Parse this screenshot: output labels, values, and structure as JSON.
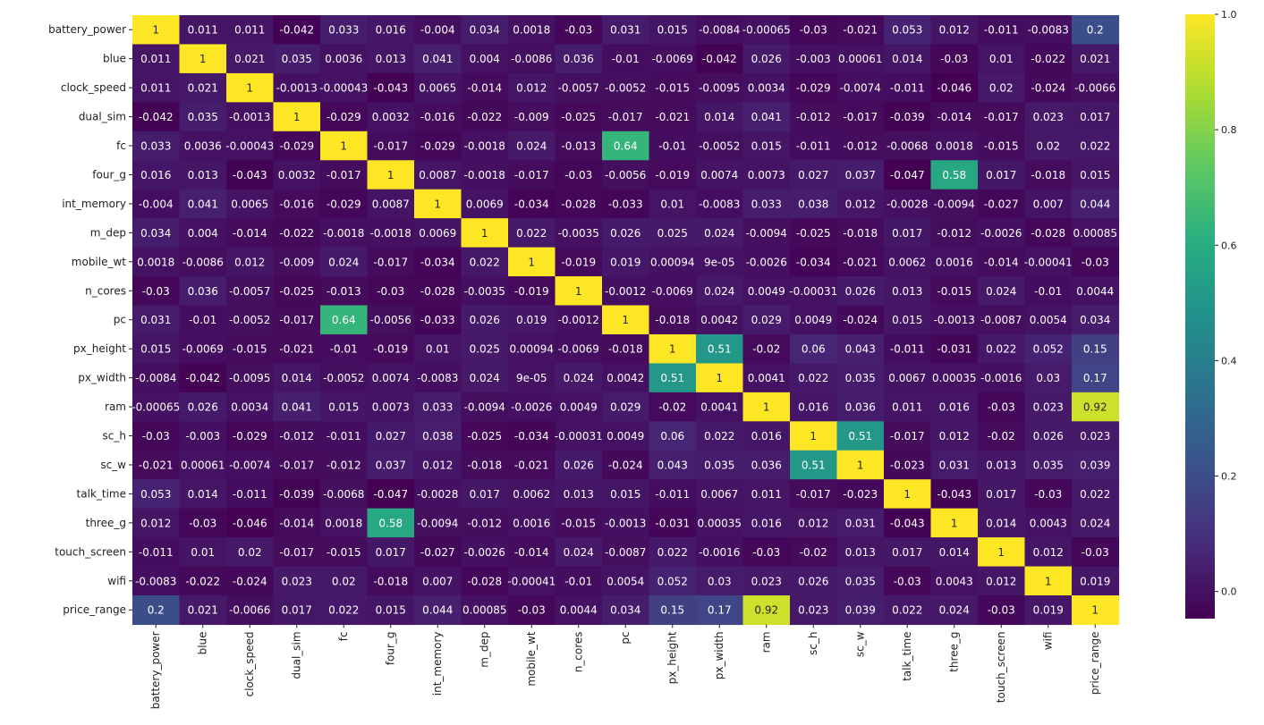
{
  "chart_data": {
    "type": "heatmap",
    "colormap": "viridis",
    "annotated": true,
    "vmin": -0.047,
    "vmax": 1.0,
    "features": [
      "battery_power",
      "blue",
      "clock_speed",
      "dual_sim",
      "fc",
      "four_g",
      "int_memory",
      "m_dep",
      "mobile_wt",
      "n_cores",
      "pc",
      "px_height",
      "px_width",
      "ram",
      "sc_h",
      "sc_w",
      "talk_time",
      "three_g",
      "touch_screen",
      "wifi",
      "price_range"
    ],
    "labels": [
      [
        "1",
        "0.011",
        "0.011",
        "-0.042",
        "0.033",
        "0.016",
        "-0.004",
        "0.034",
        "0.0018",
        "-0.03",
        "0.031",
        "0.015",
        "-0.0084",
        "-0.00065",
        "-0.03",
        "-0.021",
        "0.053",
        "0.012",
        "-0.011",
        "-0.0083",
        "0.2"
      ],
      [
        "0.011",
        "1",
        "0.021",
        "0.035",
        "0.0036",
        "0.013",
        "0.041",
        "0.004",
        "-0.0086",
        "0.036",
        "-0.01",
        "-0.0069",
        "-0.042",
        "0.026",
        "-0.003",
        "0.00061",
        "0.014",
        "-0.03",
        "0.01",
        "-0.022",
        "0.021"
      ],
      [
        "0.011",
        "0.021",
        "1",
        "-0.0013",
        "-0.00043",
        "-0.043",
        "0.0065",
        "-0.014",
        "0.012",
        "-0.0057",
        "-0.0052",
        "-0.015",
        "-0.0095",
        "0.0034",
        "-0.029",
        "-0.0074",
        "-0.011",
        "-0.046",
        "0.02",
        "-0.024",
        "-0.0066"
      ],
      [
        "-0.042",
        "0.035",
        "-0.0013",
        "1",
        "-0.029",
        "0.0032",
        "-0.016",
        "-0.022",
        "-0.009",
        "-0.025",
        "-0.017",
        "-0.021",
        "0.014",
        "0.041",
        "-0.012",
        "-0.017",
        "-0.039",
        "-0.014",
        "-0.017",
        "0.023",
        "0.017"
      ],
      [
        "0.033",
        "0.0036",
        "-0.00043",
        "-0.029",
        "1",
        "-0.017",
        "-0.029",
        "-0.0018",
        "0.024",
        "-0.013",
        "0.64",
        "-0.01",
        "-0.0052",
        "0.015",
        "-0.011",
        "-0.012",
        "-0.0068",
        "0.0018",
        "-0.015",
        "0.02",
        "0.022"
      ],
      [
        "0.016",
        "0.013",
        "-0.043",
        "0.0032",
        "-0.017",
        "1",
        "0.0087",
        "-0.0018",
        "-0.017",
        "-0.03",
        "-0.0056",
        "-0.019",
        "0.0074",
        "0.0073",
        "0.027",
        "0.037",
        "-0.047",
        "0.58",
        "0.017",
        "-0.018",
        "0.015"
      ],
      [
        "-0.004",
        "0.041",
        "0.0065",
        "-0.016",
        "-0.029",
        "0.0087",
        "1",
        "0.0069",
        "-0.034",
        "-0.028",
        "-0.033",
        "0.01",
        "-0.0083",
        "0.033",
        "0.038",
        "0.012",
        "-0.0028",
        "-0.0094",
        "-0.027",
        "0.007",
        "0.044"
      ],
      [
        "0.034",
        "0.004",
        "-0.014",
        "-0.022",
        "-0.0018",
        "-0.0018",
        "0.0069",
        "1",
        "0.022",
        "-0.0035",
        "0.026",
        "0.025",
        "0.024",
        "-0.0094",
        "-0.025",
        "-0.018",
        "0.017",
        "-0.012",
        "-0.0026",
        "-0.028",
        "0.00085"
      ],
      [
        "0.0018",
        "-0.0086",
        "0.012",
        "-0.009",
        "0.024",
        "-0.017",
        "-0.034",
        "0.022",
        "1",
        "-0.019",
        "0.019",
        "0.00094",
        "9e-05",
        "-0.0026",
        "-0.034",
        "-0.021",
        "0.0062",
        "0.0016",
        "-0.014",
        "-0.00041",
        "-0.03"
      ],
      [
        "-0.03",
        "0.036",
        "-0.0057",
        "-0.025",
        "-0.013",
        "-0.03",
        "-0.028",
        "-0.0035",
        "-0.019",
        "1",
        "-0.0012",
        "-0.0069",
        "0.024",
        "0.0049",
        "-0.00031",
        "0.026",
        "0.013",
        "-0.015",
        "0.024",
        "-0.01",
        "0.0044"
      ],
      [
        "0.031",
        "-0.01",
        "-0.0052",
        "-0.017",
        "0.64",
        "-0.0056",
        "-0.033",
        "0.026",
        "0.019",
        "-0.0012",
        "1",
        "-0.018",
        "0.0042",
        "0.029",
        "0.0049",
        "-0.024",
        "0.015",
        "-0.0013",
        "-0.0087",
        "0.0054",
        "0.034"
      ],
      [
        "0.015",
        "-0.0069",
        "-0.015",
        "-0.021",
        "-0.01",
        "-0.019",
        "0.01",
        "0.025",
        "0.00094",
        "-0.0069",
        "-0.018",
        "1",
        "0.51",
        "-0.02",
        "0.06",
        "0.043",
        "-0.011",
        "-0.031",
        "0.022",
        "0.052",
        "0.15"
      ],
      [
        "-0.0084",
        "-0.042",
        "-0.0095",
        "0.014",
        "-0.0052",
        "0.0074",
        "-0.0083",
        "0.024",
        "9e-05",
        "0.024",
        "0.0042",
        "0.51",
        "1",
        "0.0041",
        "0.022",
        "0.035",
        "0.0067",
        "0.00035",
        "-0.0016",
        "0.03",
        "0.17"
      ],
      [
        "-0.00065",
        "0.026",
        "0.0034",
        "0.041",
        "0.015",
        "0.0073",
        "0.033",
        "-0.0094",
        "-0.0026",
        "0.0049",
        "0.029",
        "-0.02",
        "0.0041",
        "1",
        "0.016",
        "0.036",
        "0.011",
        "0.016",
        "-0.03",
        "0.023",
        "0.92"
      ],
      [
        "-0.03",
        "-0.003",
        "-0.029",
        "-0.012",
        "-0.011",
        "0.027",
        "0.038",
        "-0.025",
        "-0.034",
        "-0.00031",
        "0.0049",
        "0.06",
        "0.022",
        "0.016",
        "1",
        "0.51",
        "-0.017",
        "0.012",
        "-0.02",
        "0.026",
        "0.023"
      ],
      [
        "-0.021",
        "0.00061",
        "-0.0074",
        "-0.017",
        "-0.012",
        "0.037",
        "0.012",
        "-0.018",
        "-0.021",
        "0.026",
        "-0.024",
        "0.043",
        "0.035",
        "0.036",
        "0.51",
        "1",
        "-0.023",
        "0.031",
        "0.013",
        "0.035",
        "0.039"
      ],
      [
        "0.053",
        "0.014",
        "-0.011",
        "-0.039",
        "-0.0068",
        "-0.047",
        "-0.0028",
        "0.017",
        "0.0062",
        "0.013",
        "0.015",
        "-0.011",
        "0.0067",
        "0.011",
        "-0.017",
        "-0.023",
        "1",
        "-0.043",
        "0.017",
        "-0.03",
        "0.022"
      ],
      [
        "0.012",
        "-0.03",
        "-0.046",
        "-0.014",
        "0.0018",
        "0.58",
        "-0.0094",
        "-0.012",
        "0.0016",
        "-0.015",
        "-0.0013",
        "-0.031",
        "0.00035",
        "0.016",
        "0.012",
        "0.031",
        "-0.043",
        "1",
        "0.014",
        "0.0043",
        "0.024"
      ],
      [
        "-0.011",
        "0.01",
        "0.02",
        "-0.017",
        "-0.015",
        "0.017",
        "-0.027",
        "-0.0026",
        "-0.014",
        "0.024",
        "-0.0087",
        "0.022",
        "-0.0016",
        "-0.03",
        "-0.02",
        "0.013",
        "0.017",
        "0.014",
        "1",
        "0.012",
        "-0.03"
      ],
      [
        "-0.0083",
        "-0.022",
        "-0.024",
        "0.023",
        "0.02",
        "-0.018",
        "0.007",
        "-0.028",
        "-0.00041",
        "-0.01",
        "0.0054",
        "0.052",
        "0.03",
        "0.023",
        "0.026",
        "0.035",
        "-0.03",
        "0.0043",
        "0.012",
        "1",
        "0.019"
      ],
      [
        "0.2",
        "0.021",
        "-0.0066",
        "0.017",
        "0.022",
        "0.015",
        "0.044",
        "0.00085",
        "-0.03",
        "0.0044",
        "0.034",
        "0.15",
        "0.17",
        "0.92",
        "0.023",
        "0.039",
        "0.022",
        "0.024",
        "-0.03",
        "0.019",
        "1"
      ]
    ],
    "colorbar": {
      "ticks": [
        0.0,
        0.2,
        0.4,
        0.6,
        0.8,
        1.0
      ],
      "tick_labels": [
        "0.0",
        "0.2",
        "0.4",
        "0.6",
        "0.8",
        "1.0"
      ]
    }
  }
}
